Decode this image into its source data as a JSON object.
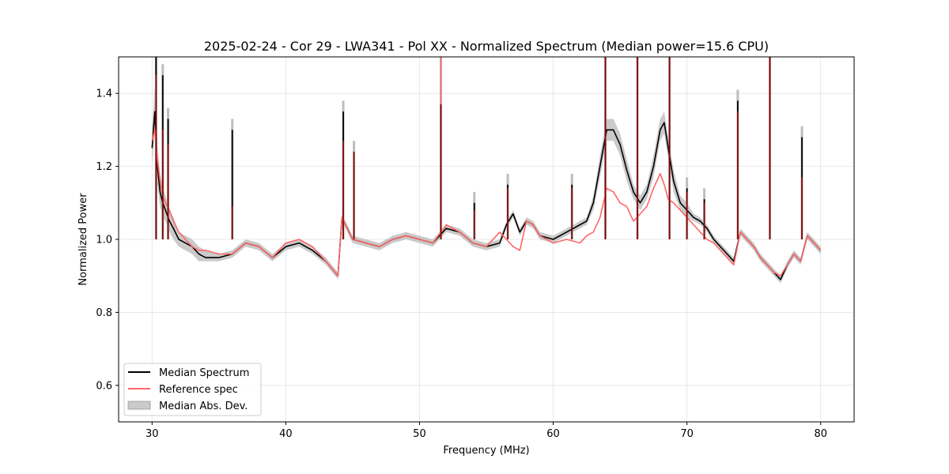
{
  "chart_data": {
    "type": "line",
    "title": "2025-02-24 - Cor 29 - LWA341 - Pol XX - Normalized Spectrum (Median power=15.6 CPU)",
    "xlabel": "Frequency (MHz)",
    "ylabel": "Normalized Power",
    "xlim": [
      27.5,
      82.5
    ],
    "ylim": [
      0.5,
      1.5
    ],
    "xticks": [
      30,
      40,
      50,
      60,
      70,
      80
    ],
    "yticks": [
      0.6,
      0.8,
      1.0,
      1.2,
      1.4
    ],
    "xtick_labels": [
      "30",
      "40",
      "50",
      "60",
      "70",
      "80"
    ],
    "ytick_labels": [
      "0.6",
      "0.8",
      "1.0",
      "1.2",
      "1.4"
    ],
    "grid": true,
    "legend_position": "lower-left",
    "colors": {
      "median": "#000000",
      "reference": "#ff6666",
      "mad_band": "#bdbdbd",
      "overlap": "#8b0000"
    },
    "series": [
      {
        "name": "Median Spectrum",
        "style": "line",
        "x": [
          30.0,
          30.2,
          30.4,
          30.6,
          30.8,
          31.0,
          31.3,
          31.6,
          32.0,
          32.5,
          33.0,
          33.5,
          34.0,
          35.0,
          36.0,
          37.0,
          38.0,
          39.0,
          40.0,
          41.0,
          42.0,
          43.0,
          43.9,
          44.2,
          45.0,
          46.0,
          47.0,
          48.0,
          49.0,
          50.0,
          51.0,
          52.0,
          53.0,
          54.0,
          55.0,
          56.0,
          56.5,
          57.0,
          57.5,
          58.0,
          58.5,
          59.0,
          60.0,
          61.0,
          62.0,
          62.5,
          63.0,
          63.5,
          64.0,
          64.5,
          65.0,
          65.5,
          66.0,
          66.5,
          67.0,
          67.5,
          68.0,
          68.3,
          68.6,
          69.0,
          69.5,
          70.0,
          70.5,
          71.0,
          71.5,
          72.0,
          72.5,
          73.0,
          73.5,
          74.0,
          74.5,
          75.0,
          75.5,
          76.0,
          76.5,
          77.0,
          77.5,
          78.0,
          78.5,
          79.0,
          79.5,
          80.0
        ],
        "y": [
          1.25,
          1.35,
          1.2,
          1.13,
          1.1,
          1.08,
          1.05,
          1.03,
          1.0,
          0.99,
          0.98,
          0.96,
          0.95,
          0.95,
          0.96,
          0.99,
          0.98,
          0.95,
          0.98,
          0.99,
          0.97,
          0.94,
          0.9,
          1.06,
          1.0,
          0.99,
          0.98,
          1.0,
          1.01,
          1.0,
          0.99,
          1.03,
          1.02,
          0.99,
          0.98,
          0.99,
          1.04,
          1.07,
          1.02,
          1.05,
          1.04,
          1.01,
          1.0,
          1.02,
          1.04,
          1.05,
          1.1,
          1.2,
          1.3,
          1.3,
          1.26,
          1.19,
          1.13,
          1.1,
          1.13,
          1.2,
          1.3,
          1.32,
          1.25,
          1.16,
          1.1,
          1.08,
          1.06,
          1.05,
          1.03,
          1.0,
          0.98,
          0.96,
          0.94,
          1.02,
          1.0,
          0.98,
          0.95,
          0.93,
          0.91,
          0.89,
          0.93,
          0.96,
          0.94,
          1.01,
          0.99,
          0.97
        ]
      },
      {
        "name": "Reference spec",
        "style": "line",
        "x": [
          30.0,
          30.2,
          30.4,
          30.6,
          30.8,
          31.0,
          31.3,
          31.6,
          32.0,
          32.5,
          33.0,
          33.5,
          34.0,
          35.0,
          36.0,
          37.0,
          38.0,
          39.0,
          40.0,
          41.0,
          42.0,
          43.0,
          43.9,
          44.2,
          45.0,
          46.0,
          47.0,
          48.0,
          49.0,
          50.0,
          51.0,
          52.0,
          53.0,
          54.0,
          55.0,
          56.0,
          56.5,
          57.0,
          57.5,
          58.0,
          58.5,
          59.0,
          60.0,
          61.0,
          62.0,
          62.5,
          63.0,
          63.5,
          64.0,
          64.5,
          65.0,
          65.5,
          66.0,
          66.5,
          67.0,
          67.5,
          68.0,
          68.3,
          68.6,
          69.0,
          69.5,
          70.0,
          70.5,
          71.0,
          71.5,
          72.0,
          72.5,
          73.0,
          73.5,
          74.0,
          74.5,
          75.0,
          75.5,
          76.0,
          76.5,
          77.0,
          77.5,
          78.0,
          78.5,
          79.0,
          79.5,
          80.0
        ],
        "y": [
          1.27,
          1.3,
          1.22,
          1.16,
          1.12,
          1.1,
          1.08,
          1.05,
          1.02,
          1.0,
          0.98,
          0.97,
          0.97,
          0.96,
          0.96,
          0.99,
          0.98,
          0.95,
          0.99,
          1.0,
          0.98,
          0.94,
          0.9,
          1.06,
          1.0,
          0.99,
          0.98,
          1.0,
          1.01,
          1.0,
          0.99,
          1.04,
          1.02,
          0.99,
          0.98,
          1.02,
          1.0,
          0.98,
          0.97,
          1.05,
          1.04,
          1.01,
          0.99,
          1.0,
          0.99,
          1.01,
          1.02,
          1.06,
          1.14,
          1.13,
          1.1,
          1.09,
          1.05,
          1.07,
          1.09,
          1.14,
          1.18,
          1.15,
          1.11,
          1.1,
          1.08,
          1.06,
          1.04,
          1.02,
          1.0,
          0.99,
          0.97,
          0.95,
          0.93,
          1.02,
          1.0,
          0.98,
          0.95,
          0.93,
          0.91,
          0.9,
          0.93,
          0.96,
          0.94,
          1.01,
          0.99,
          0.97
        ]
      },
      {
        "name": "Median Abs. Dev.",
        "style": "band",
        "x": [
          30.0,
          30.2,
          30.4,
          30.6,
          30.8,
          31.0,
          31.3,
          31.6,
          32.0,
          32.5,
          33.0,
          33.5,
          34.0,
          35.0,
          36.0,
          37.0,
          38.0,
          39.0,
          40.0,
          41.0,
          42.0,
          43.0,
          43.9,
          44.2,
          45.0,
          46.0,
          47.0,
          48.0,
          49.0,
          50.0,
          51.0,
          52.0,
          53.0,
          54.0,
          55.0,
          56.0,
          56.5,
          57.0,
          57.5,
          58.0,
          58.5,
          59.0,
          60.0,
          61.0,
          62.0,
          62.5,
          63.0,
          63.5,
          64.0,
          64.5,
          65.0,
          65.5,
          66.0,
          66.5,
          67.0,
          67.5,
          68.0,
          68.3,
          68.6,
          69.0,
          69.5,
          70.0,
          70.5,
          71.0,
          71.5,
          72.0,
          72.5,
          73.0,
          73.5,
          74.0,
          74.5,
          75.0,
          75.5,
          76.0,
          76.5,
          77.0,
          77.5,
          78.0,
          78.5,
          79.0,
          79.5,
          80.0
        ],
        "lower": [
          1.2,
          1.3,
          1.15,
          1.09,
          1.06,
          1.05,
          1.02,
          1.0,
          0.98,
          0.97,
          0.96,
          0.94,
          0.94,
          0.94,
          0.95,
          0.98,
          0.97,
          0.94,
          0.97,
          0.98,
          0.96,
          0.93,
          0.89,
          1.05,
          0.99,
          0.98,
          0.97,
          0.99,
          1.0,
          0.99,
          0.98,
          1.02,
          1.01,
          0.98,
          0.97,
          0.98,
          1.03,
          1.06,
          1.01,
          1.04,
          1.03,
          1.0,
          0.99,
          1.01,
          1.03,
          1.04,
          1.08,
          1.17,
          1.27,
          1.27,
          1.23,
          1.16,
          1.11,
          1.08,
          1.11,
          1.17,
          1.27,
          1.29,
          1.22,
          1.13,
          1.08,
          1.06,
          1.05,
          1.04,
          1.02,
          0.99,
          0.97,
          0.95,
          0.93,
          1.01,
          0.99,
          0.97,
          0.94,
          0.92,
          0.9,
          0.88,
          0.92,
          0.95,
          0.93,
          1.0,
          0.98,
          0.96
        ],
        "upper": [
          1.3,
          1.42,
          1.26,
          1.18,
          1.14,
          1.12,
          1.08,
          1.06,
          1.02,
          1.01,
          1.0,
          0.98,
          0.97,
          0.96,
          0.97,
          1.0,
          0.99,
          0.96,
          0.99,
          1.0,
          0.98,
          0.95,
          0.91,
          1.07,
          1.01,
          1.0,
          0.99,
          1.01,
          1.02,
          1.01,
          1.0,
          1.04,
          1.03,
          1.0,
          0.99,
          1.0,
          1.05,
          1.08,
          1.03,
          1.06,
          1.05,
          1.02,
          1.01,
          1.03,
          1.05,
          1.06,
          1.12,
          1.23,
          1.33,
          1.33,
          1.29,
          1.22,
          1.15,
          1.12,
          1.15,
          1.23,
          1.33,
          1.35,
          1.28,
          1.19,
          1.12,
          1.1,
          1.07,
          1.06,
          1.04,
          1.01,
          0.99,
          0.97,
          0.95,
          1.03,
          1.01,
          0.99,
          0.96,
          0.94,
          0.92,
          0.9,
          0.94,
          0.97,
          0.95,
          1.02,
          1.0,
          0.98
        ]
      }
    ],
    "spikes": [
      {
        "x": 30.3,
        "median": 1.5,
        "reference": 1.45
      },
      {
        "x": 30.8,
        "median": 1.45,
        "reference": 1.3
      },
      {
        "x": 31.2,
        "median": 1.33,
        "reference": 1.26
      },
      {
        "x": 36.0,
        "median": 1.3,
        "reference": 1.09
      },
      {
        "x": 44.3,
        "median": 1.35,
        "reference": 1.27
      },
      {
        "x": 45.1,
        "median": 1.24,
        "reference": 1.24
      },
      {
        "x": 51.6,
        "median": 1.37,
        "reference": 1.5
      },
      {
        "x": 54.1,
        "median": 1.1,
        "reference": 1.08
      },
      {
        "x": 56.6,
        "median": 1.15,
        "reference": 1.14
      },
      {
        "x": 61.4,
        "median": 1.15,
        "reference": 1.14
      },
      {
        "x": 63.9,
        "median": 1.5,
        "reference": 1.5
      },
      {
        "x": 66.3,
        "median": 1.5,
        "reference": 1.5
      },
      {
        "x": 68.7,
        "median": 1.5,
        "reference": 1.5
      },
      {
        "x": 70.0,
        "median": 1.14,
        "reference": 1.13
      },
      {
        "x": 71.3,
        "median": 1.11,
        "reference": 1.1
      },
      {
        "x": 73.8,
        "median": 1.38,
        "reference": 1.35
      },
      {
        "x": 76.2,
        "median": 1.5,
        "reference": 1.5
      },
      {
        "x": 78.6,
        "median": 1.28,
        "reference": 1.17
      }
    ]
  }
}
